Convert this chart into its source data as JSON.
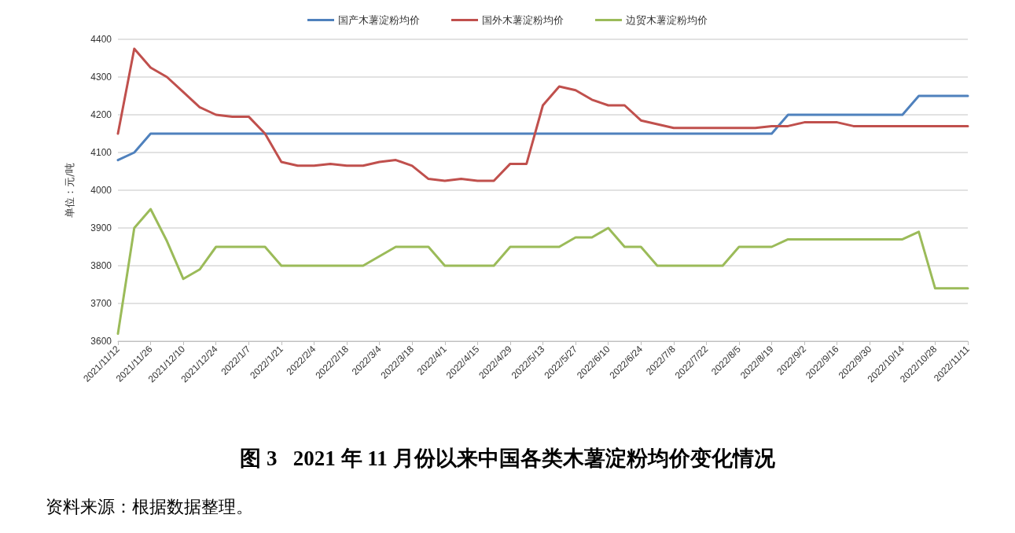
{
  "chart_data": {
    "type": "line",
    "title": "图 3   2021 年 11 月份以来中国各类木薯淀粉均价变化情况",
    "ylabel": "单位：元/吨",
    "categories": [
      "2021/11/12",
      null,
      "2021/11/26",
      null,
      "2021/12/10",
      null,
      "2021/12/24",
      null,
      "2022/1/7",
      null,
      "2022/1/21",
      null,
      "2022/2/4",
      null,
      "2022/2/18",
      null,
      "2022/3/4",
      null,
      "2022/3/18",
      null,
      "2022/4/1",
      null,
      "2022/4/15",
      null,
      "2022/4/29",
      null,
      "2022/5/13",
      null,
      "2022/5/27",
      null,
      "2022/6/10",
      null,
      "2022/6/24",
      null,
      "2022/7/8",
      null,
      "2022/7/22",
      null,
      "2022/8/5",
      null,
      "2022/8/19",
      null,
      "2022/9/2",
      null,
      "2022/9/16",
      null,
      "2022/9/30",
      null,
      "2022/10/14",
      null,
      "2022/10/28",
      null,
      "2022/11/11"
    ],
    "series": [
      {
        "name": "国产木薯淀粉均价",
        "color": "#4f81bd",
        "values": [
          4080,
          4100,
          4150,
          4150,
          4150,
          4150,
          4150,
          4150,
          4150,
          4150,
          4150,
          4150,
          4150,
          4150,
          4150,
          4150,
          4150,
          4150,
          4150,
          4150,
          4150,
          4150,
          4150,
          4150,
          4150,
          4150,
          4150,
          4150,
          4150,
          4150,
          4150,
          4150,
          4150,
          4150,
          4150,
          4150,
          4150,
          4150,
          4150,
          4150,
          4150,
          4200,
          4200,
          4200,
          4200,
          4200,
          4200,
          4200,
          4200,
          4250,
          4250,
          4250,
          4250
        ]
      },
      {
        "name": "国外木薯淀粉均价",
        "color": "#c0504d",
        "values": [
          4150,
          4375,
          4325,
          4300,
          4260,
          4220,
          4200,
          4195,
          4195,
          4150,
          4075,
          4065,
          4065,
          4070,
          4065,
          4065,
          4075,
          4080,
          4065,
          4030,
          4025,
          4030,
          4025,
          4025,
          4070,
          4070,
          4225,
          4275,
          4265,
          4240,
          4225,
          4225,
          4185,
          4175,
          4165,
          4165,
          4165,
          4165,
          4165,
          4165,
          4170,
          4170,
          4180,
          4180,
          4180,
          4170,
          4170,
          4170,
          4170,
          4170,
          4170,
          4170,
          4170
        ]
      },
      {
        "name": "边贸木薯淀粉均价",
        "color": "#9bbb59",
        "values": [
          3620,
          3900,
          3950,
          3865,
          3765,
          3790,
          3850,
          3850,
          3850,
          3850,
          3800,
          3800,
          3800,
          3800,
          3800,
          3800,
          3825,
          3850,
          3850,
          3850,
          3800,
          3800,
          3800,
          3800,
          3850,
          3850,
          3850,
          3850,
          3875,
          3875,
          3900,
          3850,
          3850,
          3800,
          3800,
          3800,
          3800,
          3800,
          3850,
          3850,
          3850,
          3870,
          3870,
          3870,
          3870,
          3870,
          3870,
          3870,
          3870,
          3890,
          3740,
          3740,
          3740
        ]
      }
    ],
    "ylim": [
      3600,
      4400
    ],
    "yticks": [
      3600,
      3700,
      3800,
      3900,
      4000,
      4100,
      4200,
      4300,
      4400
    ],
    "grid": "y",
    "legend": "top",
    "marker": "none",
    "line_style": "solid",
    "annotations": [
      "资料来源：根据数据整理。"
    ]
  }
}
